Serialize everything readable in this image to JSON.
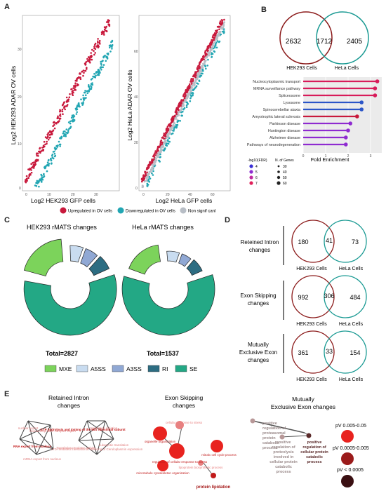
{
  "panels": {
    "A": "A",
    "B": "B",
    "C": "C",
    "D": "D",
    "E": "E"
  },
  "panel_a": {
    "left": {
      "xlabel": "Log2 HEK293 GFP cells",
      "ylabel": "Log2 HEK293 ADAR OV cells",
      "xticks": [
        "0",
        "10",
        "20",
        "30"
      ],
      "yticks": [
        "0",
        "10",
        "20",
        "30"
      ]
    },
    "right": {
      "xlabel": "Log2 HeLa GFP cells",
      "ylabel": "Log2 HeLa ADAR OV cells",
      "xticks": [
        "0",
        "20",
        "40",
        "60"
      ],
      "yticks": [
        "0",
        "20",
        "40",
        "60"
      ]
    },
    "legend": [
      {
        "label": "Upregulated in OV cells",
        "color": "#c8193c"
      },
      {
        "label": "Downregulated in OV cells",
        "color": "#22a6b3"
      },
      {
        "label": "Non signif canl",
        "color": "#b8bec6"
      }
    ]
  },
  "panel_b": {
    "venn": {
      "left_only": "2632",
      "overlap": "1712",
      "right_only": "2405",
      "left_label": "HEK293 Cells",
      "right_label": "HeLa Cells"
    },
    "chart_data": {
      "type": "lollipop",
      "categories": [
        "Nucleocytoplasmic transport",
        "MRNA surveillance pathway",
        "Spliceosome",
        "Lysosome",
        "Spinocerebellar ataxia",
        "Amyotrophic lateral sclerosis",
        "Parkinson disease",
        "Huntington disease",
        "Alzheimer disease",
        "Pathways of neurodegeneration"
      ],
      "values": [
        3.3,
        3.2,
        3.2,
        2.6,
        2.6,
        2.4,
        2.1,
        2.0,
        1.9,
        1.9
      ],
      "colors": [
        "#d81b5a",
        "#d81b5a",
        "#d81b5a",
        "#2b55c8",
        "#2b55c8",
        "#c8193c",
        "#8e2bd0",
        "#8e2bd0",
        "#8e2bd0",
        "#8e2bd0"
      ],
      "xlabel": "Fold Enrichment",
      "xticks": [
        "0",
        "1",
        "2",
        "3"
      ],
      "xlim": [
        0,
        3.5
      ]
    },
    "legend_fdr": {
      "title": "-log10(FDR)",
      "items": [
        "4",
        "5",
        "6",
        "7"
      ],
      "colors": [
        "#3a2fd6",
        "#8e2bd0",
        "#c02aa0",
        "#e0205a"
      ]
    },
    "legend_genes": {
      "title": "N. of Genes",
      "items": [
        "30",
        "40",
        "50",
        "60"
      ]
    }
  },
  "panel_c": {
    "left": {
      "title": "HEK293 rMATS changes",
      "total": "Total=2827"
    },
    "right": {
      "title": "HeLa rMATS changes",
      "total": "Total=1537"
    },
    "legend": [
      {
        "label": "MXE",
        "color": "#7cd35b"
      },
      {
        "label": "A5SS",
        "color": "#c9dcf0"
      },
      {
        "label": "A3SS",
        "color": "#90a8d4"
      },
      {
        "label": "RI",
        "color": "#2d6d82"
      },
      {
        "label": "SE",
        "color": "#23a885"
      }
    ]
  },
  "panel_d": {
    "rows": [
      {
        "label": "Reteined Intron changes",
        "left": "180",
        "overlap": "41",
        "right": "73"
      },
      {
        "label": "Exon Skipping changes",
        "left": "992",
        "overlap": "306",
        "right": "484"
      },
      {
        "label": "Mutually Exclusive Exon changes",
        "left": "361",
        "overlap": "33",
        "right": "154"
      }
    ],
    "left_label": "HEK293 Cells",
    "right_label": "HeLa Cells"
  },
  "panel_e": {
    "col1": {
      "title": "Retained Intron changes",
      "nodes": [
        "RNA export from nucleus",
        "GTP hydrolysis and joining of the 60S ribosomal subunit",
        "Translation regulator activity",
        "LTD-mediated translational silencing of Ceruloplasmin expression",
        "mRNA export from nucleus",
        "nuclear export",
        "ribonucleoprotein complex export",
        "translation initiation",
        "eukaryotic translation"
      ]
    },
    "col2": {
      "title": "Exon Skipping changes",
      "nodes": [
        "organelle organization",
        "regulation of cellular response to stress",
        "mitotic cell cycle process",
        "microtubule cytoskeleton organization",
        "protein lipidation",
        "cellular response to stress",
        "lipoprotein biosynthetic process"
      ]
    },
    "col3": {
      "title": "Mutually Exclusive Exon changes",
      "nodes": [
        "positive regulation of proteasomal protein catabolic process",
        "positive regulation of proteolysis involved in cellular protein catabolic process",
        "positive regulation of cellular protein catabolic process"
      ]
    },
    "legend": [
      {
        "label": "pV 0.005-0.05",
        "color": "#e8231f"
      },
      {
        "label": "pV 0.0005-0.005",
        "color": "#9b1b1b"
      },
      {
        "label": "pV < 0.0005",
        "color": "#3a0f12"
      }
    ]
  }
}
